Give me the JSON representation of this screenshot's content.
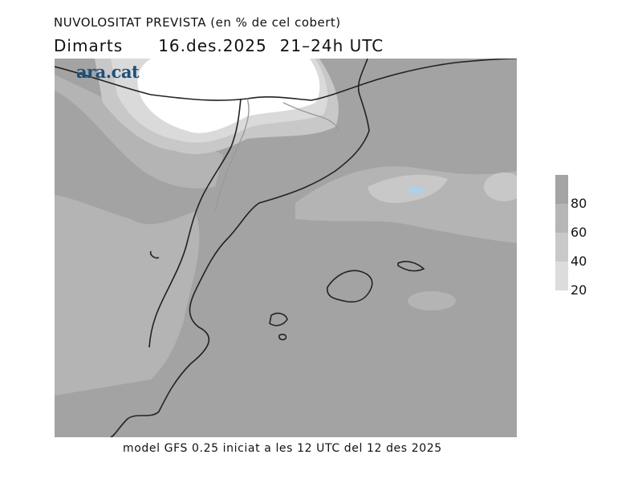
{
  "header": {
    "title": "NUVOLOSITAT PREVISTA (en % de cel cobert)",
    "day": "Dimarts",
    "date": "16.des.2025",
    "time_range": "21–24h UTC"
  },
  "brand": "ara.cat",
  "footer": "model GFS 0.25 iniciat a les 12 UTC del 12 des 2025",
  "legend": {
    "labels": [
      "80",
      "60",
      "40",
      "20"
    ],
    "colors": [
      "#a4a4a4",
      "#b6b6b6",
      "#c9c9c9",
      "#dcdcdc"
    ]
  },
  "map_colors": {
    "cloud_80": "#a3a3a3",
    "cloud_60": "#b4b4b4",
    "cloud_40": "#c8c8c8",
    "cloud_20": "#dadada",
    "clear": "#ffffff",
    "highlight": "#a8d3f0",
    "coast": "#222222",
    "border": "#9a9a9a"
  }
}
